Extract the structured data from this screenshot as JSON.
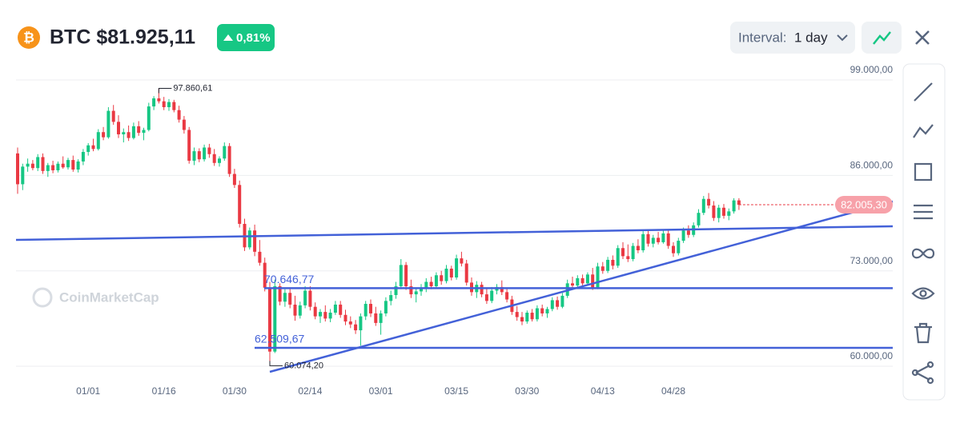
{
  "header": {
    "title": "BTC $81.925,11",
    "change": "0,81%",
    "interval_label": "Interval:",
    "interval_value": "1 day"
  },
  "watermark": "CoinMarketCap",
  "chart_data": {
    "type": "candlestick",
    "up_color": "#16c784",
    "down_color": "#ea3943",
    "level_color": "#4361d8",
    "categories": [
      null,
      null,
      null,
      null,
      null,
      null,
      null,
      null,
      null,
      null,
      null,
      null,
      null,
      null,
      "01/01",
      null,
      null,
      null,
      null,
      null,
      null,
      null,
      null,
      null,
      null,
      null,
      null,
      null,
      null,
      "01/16",
      null,
      null,
      null,
      null,
      null,
      null,
      null,
      null,
      null,
      null,
      null,
      null,
      null,
      "01/30",
      null,
      null,
      null,
      null,
      null,
      null,
      null,
      null,
      null,
      null,
      null,
      null,
      null,
      null,
      "02/14",
      null,
      null,
      null,
      null,
      null,
      null,
      null,
      null,
      null,
      null,
      null,
      null,
      null,
      "03/01",
      null,
      null,
      null,
      null,
      null,
      null,
      null,
      null,
      null,
      null,
      null,
      null,
      null,
      null,
      "03/15",
      null,
      null,
      null,
      null,
      null,
      null,
      null,
      null,
      null,
      null,
      null,
      null,
      null,
      "03/30",
      null,
      null,
      null,
      null,
      null,
      null,
      null,
      null,
      null,
      null,
      null,
      null,
      null,
      null,
      "04/13",
      null,
      null,
      null,
      null,
      null,
      null,
      null,
      null,
      null,
      null,
      null,
      null,
      null,
      "04/28",
      null,
      null,
      null,
      null,
      null,
      null,
      null,
      null,
      null,
      null,
      null,
      null,
      null
    ],
    "ohlc": [
      [
        89000,
        89800,
        83500,
        84800
      ],
      [
        84800,
        87600,
        84000,
        87200
      ],
      [
        87200,
        88300,
        86500,
        87600
      ],
      [
        87600,
        88100,
        86700,
        87000
      ],
      [
        87000,
        88900,
        86600,
        88500
      ],
      [
        88500,
        89000,
        86200,
        86600
      ],
      [
        86600,
        87700,
        85800,
        87400
      ],
      [
        87400,
        88000,
        86300,
        86700
      ],
      [
        86700,
        87900,
        86400,
        87600
      ],
      [
        87600,
        88600,
        86900,
        87100
      ],
      [
        87100,
        88400,
        86800,
        88100
      ],
      [
        88100,
        88700,
        86500,
        86800
      ],
      [
        86800,
        88200,
        86400,
        87900
      ],
      [
        87900,
        89600,
        87400,
        89200
      ],
      [
        89200,
        90400,
        88700,
        90100
      ],
      [
        90100,
        91000,
        89300,
        89600
      ],
      [
        89600,
        92300,
        89400,
        91900
      ],
      [
        91900,
        92600,
        90800,
        91200
      ],
      [
        91200,
        95300,
        91000,
        94800
      ],
      [
        94800,
        95600,
        92900,
        93300
      ],
      [
        93300,
        94200,
        91100,
        91600
      ],
      [
        91600,
        92400,
        90500,
        91900
      ],
      [
        91900,
        92800,
        90700,
        91100
      ],
      [
        91100,
        93200,
        90900,
        92700
      ],
      [
        92700,
        93400,
        91400,
        91800
      ],
      [
        91800,
        92500,
        90800,
        92200
      ],
      [
        92200,
        95900,
        92000,
        95400
      ],
      [
        95400,
        96800,
        94900,
        96500
      ],
      [
        96500,
        97860.61,
        95800,
        96100
      ],
      [
        96100,
        96700,
        94900,
        95300
      ],
      [
        95300,
        96400,
        94800,
        96000
      ],
      [
        96000,
        96300,
        94600,
        94900
      ],
      [
        94900,
        95500,
        93200,
        93600
      ],
      [
        93600,
        94100,
        91700,
        92200
      ],
      [
        92200,
        92600,
        87600,
        88000
      ],
      [
        88000,
        89800,
        87400,
        89300
      ],
      [
        89300,
        89700,
        87800,
        88200
      ],
      [
        88200,
        90200,
        87900,
        89800
      ],
      [
        89800,
        90300,
        88400,
        88900
      ],
      [
        88900,
        89600,
        87300,
        87700
      ],
      [
        87700,
        88600,
        87200,
        88300
      ],
      [
        88300,
        90500,
        88000,
        90000
      ],
      [
        90000,
        90400,
        85800,
        86200
      ],
      [
        86200,
        86900,
        84300,
        84700
      ],
      [
        84700,
        85300,
        78900,
        79400
      ],
      [
        79400,
        80100,
        75700,
        76200
      ],
      [
        76200,
        78900,
        75900,
        78500
      ],
      [
        78500,
        79300,
        75000,
        75600
      ],
      [
        75600,
        77200,
        73700,
        74100
      ],
      [
        74100,
        74800,
        70200,
        70700
      ],
      [
        70700,
        71500,
        60074.2,
        62000
      ],
      [
        62000,
        71800,
        61800,
        70900
      ],
      [
        70900,
        71300,
        68300,
        68800
      ],
      [
        68800,
        70500,
        68100,
        70000
      ],
      [
        70000,
        70600,
        67900,
        68400
      ],
      [
        68400,
        69600,
        66200,
        66900
      ],
      [
        66900,
        68800,
        66500,
        68300
      ],
      [
        68300,
        70900,
        67900,
        70300
      ],
      [
        70300,
        70900,
        67600,
        68100
      ],
      [
        68100,
        68700,
        66400,
        66800
      ],
      [
        66800,
        67800,
        65900,
        67400
      ],
      [
        67400,
        68300,
        66100,
        66500
      ],
      [
        66500,
        67800,
        66000,
        67300
      ],
      [
        67300,
        68900,
        67000,
        68400
      ],
      [
        68400,
        68900,
        66600,
        67000
      ],
      [
        67000,
        67700,
        65600,
        66100
      ],
      [
        66100,
        66800,
        65200,
        65700
      ],
      [
        65700,
        66300,
        64400,
        64900
      ],
      [
        64900,
        67200,
        62800,
        66800
      ],
      [
        66800,
        68900,
        66300,
        68500
      ],
      [
        68500,
        69100,
        66700,
        67200
      ],
      [
        67200,
        68100,
        65500,
        65900
      ],
      [
        65900,
        67600,
        64300,
        67200
      ],
      [
        67200,
        69400,
        66800,
        68900
      ],
      [
        68900,
        70300,
        68300,
        69700
      ],
      [
        69700,
        71500,
        69200,
        70900
      ],
      [
        70900,
        74600,
        70500,
        73800
      ],
      [
        73800,
        74200,
        70400,
        70900
      ],
      [
        70900,
        71800,
        69300,
        69800
      ],
      [
        69800,
        70600,
        68700,
        70200
      ],
      [
        70200,
        71200,
        69600,
        70600
      ],
      [
        70600,
        72000,
        70100,
        71500
      ],
      [
        71500,
        72200,
        70500,
        70900
      ],
      [
        70900,
        72800,
        70600,
        72400
      ],
      [
        72400,
        73000,
        71100,
        71600
      ],
      [
        71600,
        73800,
        71300,
        73300
      ],
      [
        73300,
        73700,
        71700,
        72100
      ],
      [
        72100,
        75200,
        71800,
        74700
      ],
      [
        74700,
        75600,
        73600,
        74000
      ],
      [
        74000,
        74500,
        71000,
        71400
      ],
      [
        71400,
        72100,
        69600,
        70100
      ],
      [
        70100,
        71600,
        69300,
        71100
      ],
      [
        71100,
        71500,
        69400,
        69800
      ],
      [
        69800,
        70600,
        68500,
        68900
      ],
      [
        68900,
        70800,
        68600,
        70300
      ],
      [
        70300,
        71200,
        69800,
        70800
      ],
      [
        70800,
        71700,
        69700,
        70100
      ],
      [
        70100,
        70700,
        68700,
        69100
      ],
      [
        69100,
        69600,
        67000,
        67400
      ],
      [
        67400,
        68200,
        66200,
        66700
      ],
      [
        66700,
        67400,
        65600,
        66100
      ],
      [
        66100,
        67600,
        65800,
        67300
      ],
      [
        67300,
        67800,
        66100,
        66400
      ],
      [
        66400,
        68300,
        66100,
        67900
      ],
      [
        67900,
        68400,
        66800,
        67200
      ],
      [
        67200,
        68100,
        66600,
        67800
      ],
      [
        67800,
        69400,
        67500,
        69000
      ],
      [
        69000,
        69500,
        67700,
        68100
      ],
      [
        68100,
        70000,
        67900,
        69600
      ],
      [
        69600,
        71800,
        69300,
        71300
      ],
      [
        71300,
        72200,
        70600,
        71000
      ],
      [
        71000,
        72400,
        70700,
        72000
      ],
      [
        72000,
        72500,
        70900,
        71300
      ],
      [
        71300,
        72800,
        71000,
        72500
      ],
      [
        72500,
        73400,
        70400,
        70700
      ],
      [
        70700,
        74100,
        70500,
        73600
      ],
      [
        73600,
        74200,
        72600,
        73000
      ],
      [
        73000,
        74900,
        72700,
        74500
      ],
      [
        74500,
        75100,
        73200,
        73700
      ],
      [
        73700,
        76500,
        73400,
        76100
      ],
      [
        76100,
        76900,
        74600,
        75000
      ],
      [
        75000,
        76600,
        74200,
        74600
      ],
      [
        74600,
        76800,
        74300,
        76400
      ],
      [
        76400,
        77300,
        75400,
        75800
      ],
      [
        75800,
        78400,
        75500,
        78000
      ],
      [
        78000,
        78500,
        76300,
        76700
      ],
      [
        76700,
        77900,
        76200,
        77500
      ],
      [
        77500,
        78300,
        76600,
        76900
      ],
      [
        76900,
        78500,
        76700,
        78100
      ],
      [
        78100,
        78600,
        76000,
        76400
      ],
      [
        76400,
        76900,
        74900,
        75400
      ],
      [
        75400,
        77500,
        75100,
        77100
      ],
      [
        77100,
        78900,
        76800,
        78500
      ],
      [
        78500,
        79200,
        77500,
        77900
      ],
      [
        77900,
        79600,
        77600,
        79200
      ],
      [
        79200,
        81400,
        78900,
        80900
      ],
      [
        80900,
        83200,
        80600,
        82800
      ],
      [
        82800,
        83600,
        81500,
        81900
      ],
      [
        81900,
        82500,
        79800,
        80200
      ],
      [
        80200,
        82000,
        79600,
        81600
      ],
      [
        81600,
        82100,
        80100,
        80500
      ],
      [
        80500,
        81500,
        79900,
        81100
      ],
      [
        81100,
        82900,
        80800,
        82600
      ],
      [
        82600,
        82900,
        81300,
        82005.3
      ]
    ],
    "ylim": [
      58000,
      101000
    ],
    "yticks": [
      {
        "value": 60000,
        "label": "60.000,00"
      },
      {
        "value": 73000,
        "label": "73.000,00"
      },
      {
        "value": 86000,
        "label": "86.000,00"
      },
      {
        "value": 99000,
        "label": "99.000,00"
      }
    ],
    "grid": true,
    "peak": {
      "value": 97860.61,
      "label": "97.860,61"
    },
    "trough": {
      "value": 60074.2,
      "label": "60.074,20"
    },
    "levels": [
      {
        "value": 70646.77,
        "label": "70.646,77"
      },
      {
        "value": 62509.67,
        "label": "62.509,67"
      }
    ],
    "last_price": {
      "value": 82005.3,
      "label": "82.005,30"
    }
  }
}
